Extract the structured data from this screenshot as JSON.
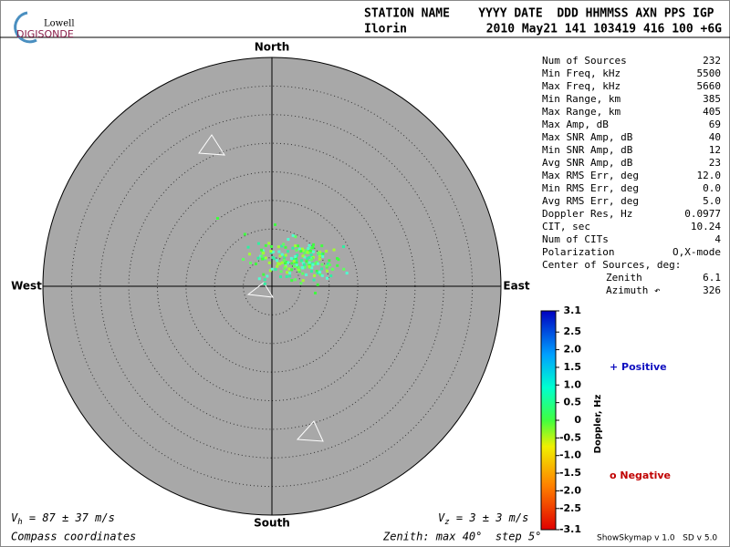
{
  "header": {
    "logo_top": "Lowell",
    "logo_bottom": "DIGISONDE",
    "columns": "STATION NAME    YYYY DATE  DDD HHMMSS AXN PPS IGP",
    "station": "Ilorin",
    "values": "2010 May21 141 103419 416 100 +6G"
  },
  "compass": {
    "north": "North",
    "south": "South",
    "west": "West",
    "east": "East"
  },
  "stats": {
    "rows": [
      [
        "Num of Sources",
        "232"
      ],
      [
        "Min Freq, kHz",
        "5500"
      ],
      [
        "Max Freq, kHz",
        "5660"
      ],
      [
        "Min Range, km",
        "385"
      ],
      [
        "Max Range, km",
        "405"
      ],
      [
        "Max Amp, dB",
        "69"
      ],
      [
        "Max SNR Amp, dB",
        "40"
      ],
      [
        "Min SNR Amp, dB",
        "12"
      ],
      [
        "Avg SNR Amp, dB",
        "23"
      ],
      [
        "Max RMS Err, deg",
        "12.0"
      ],
      [
        "Min RMS Err, deg",
        "0.0"
      ],
      [
        "Avg RMS Err, deg",
        "5.0"
      ],
      [
        "Doppler Res, Hz",
        "0.0977"
      ],
      [
        "CIT, sec",
        "10.24"
      ],
      [
        "Num of CITs",
        "4"
      ],
      [
        "Polarization",
        "O,X-mode"
      ]
    ],
    "center_title": "Center of Sources, deg:",
    "zenith": [
      "Zenith",
      "6.1"
    ],
    "azimuth": [
      "Azimuth ↶",
      "326"
    ]
  },
  "colorbar": {
    "ticks": [
      "3.1",
      "2.5",
      "2.0",
      "1.5",
      "1.0",
      "0.5",
      "0",
      "-0.5",
      "-1.0",
      "-1.5",
      "-2.0",
      "-2.5",
      "-3.1"
    ],
    "label": "Doppler, Hz",
    "positive": "+ Positive",
    "negative": "o Negative"
  },
  "footer": {
    "vh": [
      "V",
      "h",
      " = 87 ± 37 m/s"
    ],
    "vz": [
      "V",
      "z",
      " = 3 ± 3 m/s"
    ],
    "coords": "Compass coordinates",
    "zenith": "Zenith: max 40°  step 5°",
    "version": "ShowSkymap v 1.0   SD v 5.0"
  }
}
